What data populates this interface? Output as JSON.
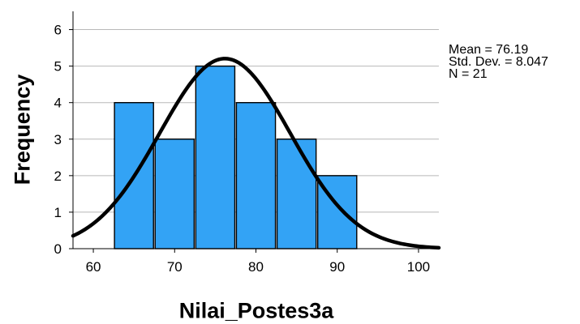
{
  "chart_data": {
    "type": "bar",
    "subtype": "histogram",
    "xlabel": "Nilai_Postes3a",
    "ylabel": "Frequency",
    "bins": [
      {
        "start": 62.5,
        "end": 67.5,
        "count": 4
      },
      {
        "start": 67.5,
        "end": 72.5,
        "count": 3
      },
      {
        "start": 72.5,
        "end": 77.5,
        "count": 5
      },
      {
        "start": 77.5,
        "end": 82.5,
        "count": 4
      },
      {
        "start": 82.5,
        "end": 87.5,
        "count": 3
      },
      {
        "start": 87.5,
        "end": 92.5,
        "count": 2
      }
    ],
    "xlim": [
      57.5,
      102.5
    ],
    "ylim": [
      0,
      6.5
    ],
    "xticks": [
      "60",
      "70",
      "80",
      "90",
      "100"
    ],
    "yticks": [
      "0",
      "1",
      "2",
      "3",
      "4",
      "5",
      "6"
    ],
    "grid": "horizontal",
    "normal_curve": {
      "mean": 76.19,
      "std": 8.047,
      "n": 21,
      "bin_width": 5
    },
    "stats": {
      "mean": "Mean = 76.19",
      "std": "Std. Dev. = 8.047",
      "n": "N = 21"
    },
    "bar_color": "#33A3F5",
    "curve_color": "#000000"
  }
}
